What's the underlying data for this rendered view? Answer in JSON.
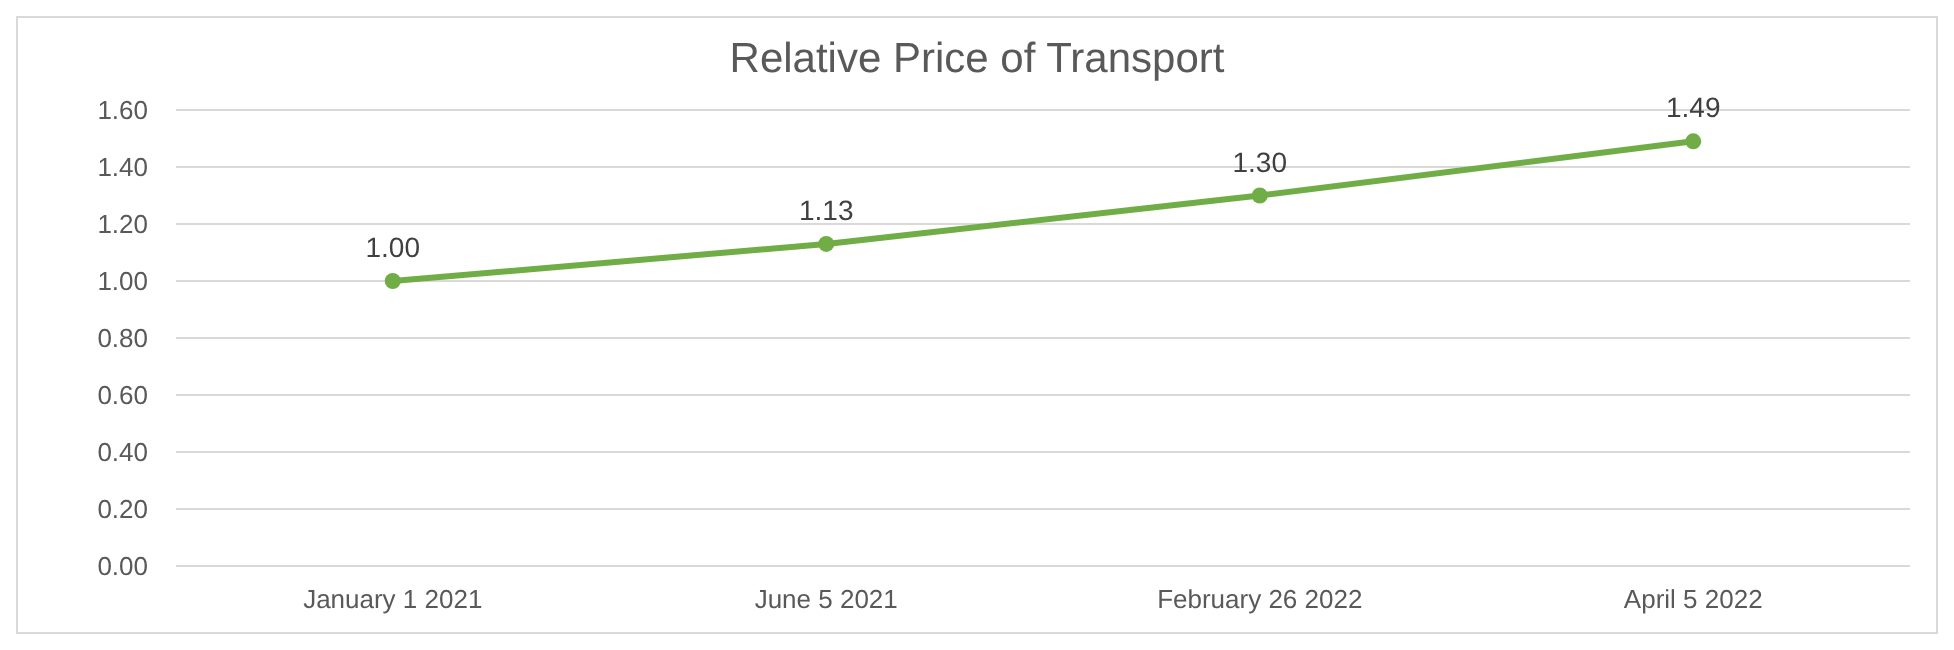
{
  "chart_data": {
    "type": "line",
    "title": "Relative Price of Transport",
    "categories": [
      "January 1 2021",
      "June 5 2021",
      "February 26 2022",
      "April 5 2022"
    ],
    "series": [
      {
        "color": "#70ad47",
        "values": [
          1.0,
          1.13,
          1.3,
          1.49
        ],
        "value_labels": [
          "1.00",
          "1.13",
          "1.30",
          "1.49"
        ]
      }
    ],
    "ylim": [
      0,
      1.6
    ],
    "yticks": [
      {
        "value": 0,
        "label": "0.00"
      },
      {
        "value": 0.2,
        "label": "0.20"
      },
      {
        "value": 0.4,
        "label": "0.40"
      },
      {
        "value": 0.6,
        "label": "0.60"
      },
      {
        "value": 0.8,
        "label": "0.80"
      },
      {
        "value": 1,
        "label": "1.00"
      },
      {
        "value": 1.2,
        "label": "1.20"
      },
      {
        "value": 1.4,
        "label": "1.40"
      },
      {
        "value": 1.6,
        "label": "1.60"
      }
    ],
    "grid": "y",
    "marker": "circle",
    "line_style": "solid"
  }
}
